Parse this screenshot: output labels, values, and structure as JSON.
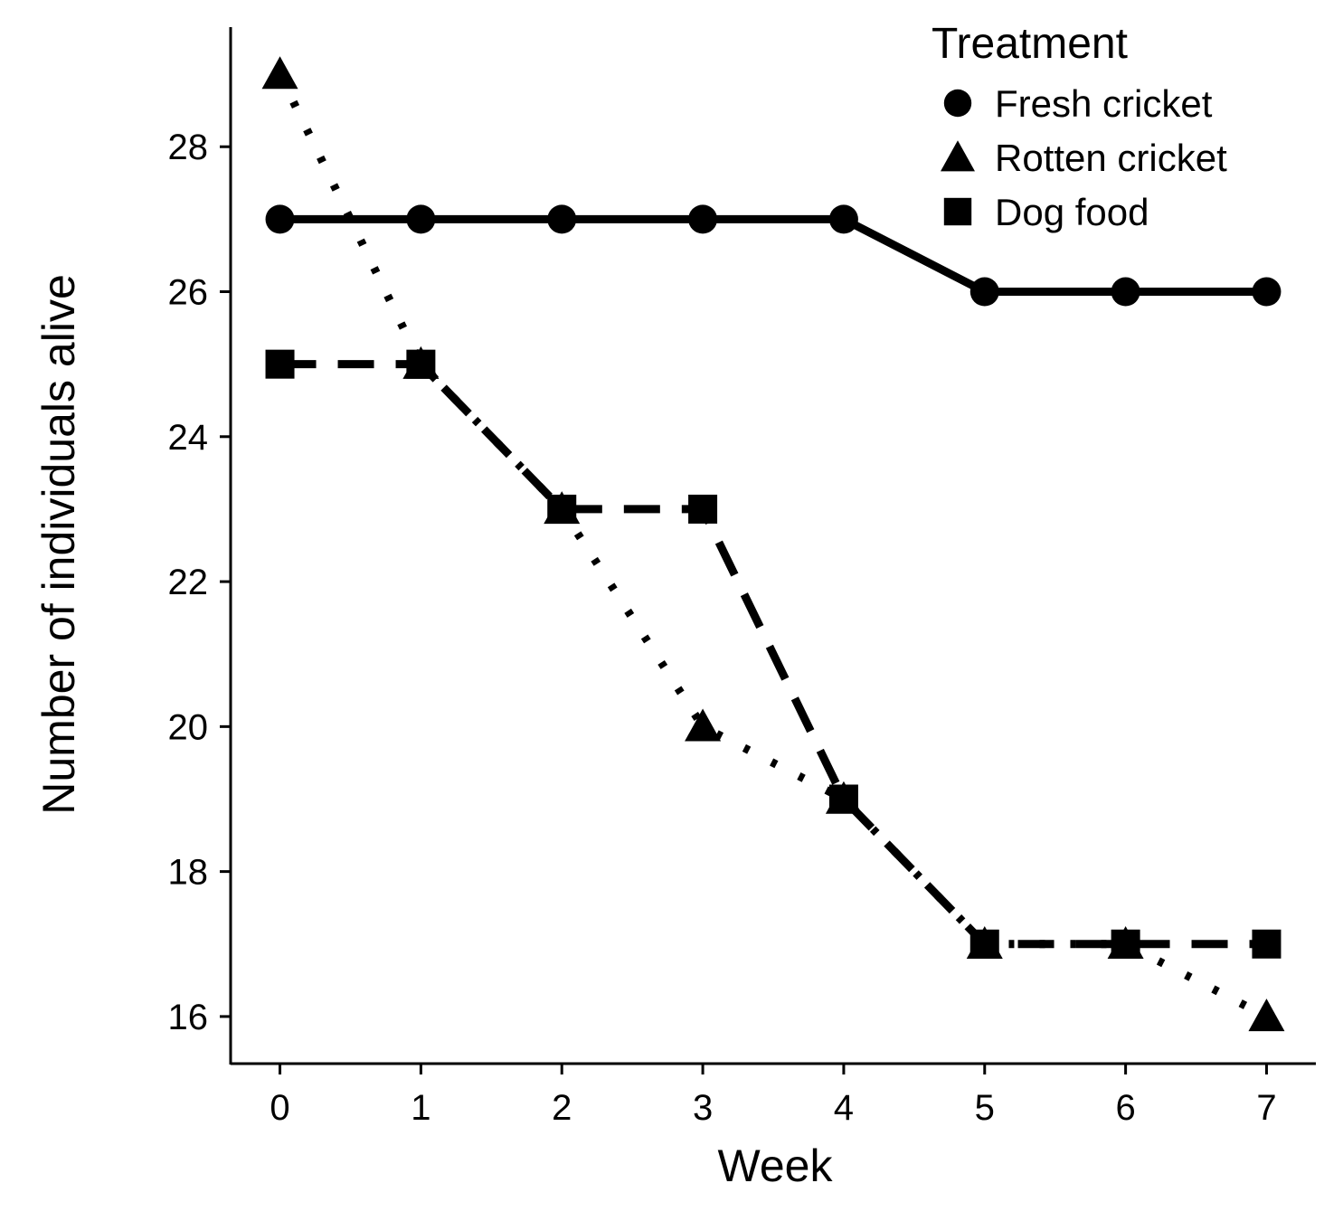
{
  "chart_data": {
    "type": "line",
    "xlabel": "Week",
    "ylabel": "Number of individuals alive",
    "x": [
      0,
      1,
      2,
      3,
      4,
      5,
      6,
      7
    ],
    "xlim": [
      -0.35,
      7.35
    ],
    "ylim": [
      15.35,
      29.65
    ],
    "xticks": [
      0,
      1,
      2,
      3,
      4,
      5,
      6,
      7
    ],
    "yticks": [
      16,
      18,
      20,
      22,
      24,
      26,
      28
    ],
    "grid": false,
    "legend": {
      "title": "Treatment",
      "position": "top-right"
    },
    "series": [
      {
        "name": "Fresh cricket",
        "marker": "circle",
        "line_style": "solid",
        "color": "#000000",
        "values": [
          27,
          27,
          27,
          27,
          27,
          26,
          26,
          26
        ]
      },
      {
        "name": "Rotten cricket",
        "marker": "triangle",
        "line_style": "dotted",
        "color": "#000000",
        "values": [
          29,
          25,
          23,
          20,
          19,
          17,
          17,
          16
        ]
      },
      {
        "name": "Dog food",
        "marker": "square",
        "line_style": "dashed",
        "color": "#000000",
        "values": [
          25,
          25,
          23,
          23,
          19,
          17,
          17,
          17
        ]
      }
    ]
  }
}
